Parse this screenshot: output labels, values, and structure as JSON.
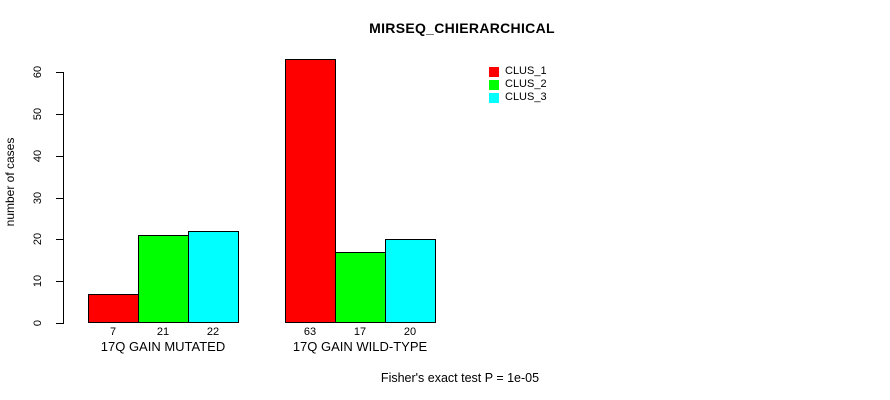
{
  "title": "MIRSEQ_CHIERARCHICAL",
  "footnote": "Fisher's exact test P = 1e-05",
  "y_axis": {
    "label": "number of cases",
    "ticks": [
      0,
      10,
      20,
      30,
      40,
      50,
      60
    ]
  },
  "legend": {
    "items": [
      {
        "label": "CLUS_1",
        "color": "#FF0000"
      },
      {
        "label": "CLUS_2",
        "color": "#00FF00"
      },
      {
        "label": "CLUS_3",
        "color": "#00FFFF"
      }
    ]
  },
  "chart_data": {
    "type": "bar",
    "title": "MIRSEQ_CHIERARCHICAL",
    "xlabel": "",
    "ylabel": "number of cases",
    "ylim": [
      0,
      63
    ],
    "yticks": [
      0,
      10,
      20,
      30,
      40,
      50,
      60
    ],
    "grid": false,
    "legend_position": "top-right",
    "categories": [
      "17Q GAIN MUTATED",
      "17Q GAIN WILD-TYPE"
    ],
    "series": [
      {
        "name": "CLUS_1",
        "color": "#FF0000",
        "values": [
          7,
          63
        ]
      },
      {
        "name": "CLUS_2",
        "color": "#00FF00",
        "values": [
          21,
          17
        ]
      },
      {
        "name": "CLUS_3",
        "color": "#00FFFF",
        "values": [
          22,
          20
        ]
      }
    ],
    "bar_value_labels": [
      [
        "7",
        "21",
        "22"
      ],
      [
        "63",
        "17",
        "20"
      ]
    ],
    "annotation": "Fisher's exact test P = 1e-05"
  }
}
